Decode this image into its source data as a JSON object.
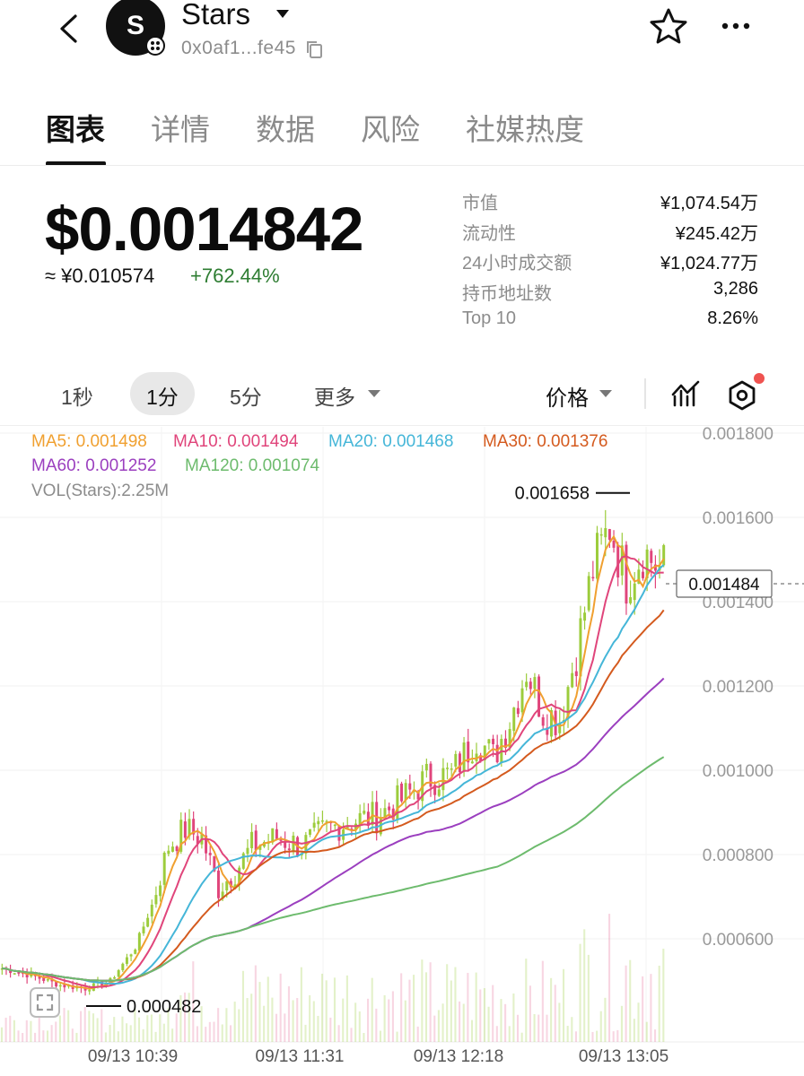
{
  "header": {
    "avatar_letter": "S",
    "token_name": "Stars",
    "address": "0x0af1...fe45",
    "icons": {
      "back": "chevron-left-icon",
      "copy": "copy-icon",
      "star": "star-outline-icon",
      "more": "more-horizontal-icon"
    }
  },
  "tabs": [
    {
      "label": "图表",
      "active": true
    },
    {
      "label": "详情",
      "active": false
    },
    {
      "label": "数据",
      "active": false
    },
    {
      "label": "风险",
      "active": false
    },
    {
      "label": "社媒热度",
      "active": false
    }
  ],
  "price": {
    "usd": "$0.0014842",
    "cny": "≈ ¥0.010574",
    "change": "+762.44%",
    "change_color": "#2e7d32"
  },
  "stats": [
    {
      "label": "市值",
      "value": "¥1,074.54万"
    },
    {
      "label": "流动性",
      "value": "¥245.42万"
    },
    {
      "label": "24小时成交额",
      "value": "¥1,024.77万"
    },
    {
      "label": "持币地址数",
      "value": "3,286"
    },
    {
      "label": "Top 10",
      "value": "8.26%"
    }
  ],
  "intervals": [
    {
      "label": "1秒",
      "active": false
    },
    {
      "label": "1分",
      "active": true
    },
    {
      "label": "5分",
      "active": false
    },
    {
      "label": "更多",
      "active": false
    }
  ],
  "price_select_label": "价格",
  "chart_data": {
    "type": "candlestick",
    "ma": [
      {
        "label": "MA5: 0.001498",
        "color": "#f0a030"
      },
      {
        "label": "MA10: 0.001494",
        "color": "#e0457b"
      },
      {
        "label": "MA20: 0.001468",
        "color": "#45b6d8"
      },
      {
        "label": "MA30: 0.001376",
        "color": "#d45a1e"
      },
      {
        "label": "MA60: 0.001252",
        "color": "#9b3fbf"
      },
      {
        "label": "MA120: 0.001074",
        "color": "#6dbb6d"
      }
    ],
    "volume_label": "VOL(Stars):2.25M",
    "y_ticks": [
      "0.001800",
      "0.001600",
      "0.001400",
      "0.001200",
      "0.001000",
      "0.000800",
      "0.000600"
    ],
    "y_tick_values": [
      0.0018,
      0.0016,
      0.0014,
      0.0012,
      0.001,
      0.0008,
      0.0006
    ],
    "x_ticks": [
      "09/13 10:39",
      "09/13 11:31",
      "09/13 12:18",
      "09/13 13:05"
    ],
    "high_marker": "0.001658",
    "low_marker": "0.000482",
    "current_price": "0.001484",
    "up_color": "#9ccc3c",
    "down_color": "#e0457b",
    "anchors_time_price": [
      [
        0,
        0.00053
      ],
      [
        8,
        0.00051
      ],
      [
        14,
        0.00049
      ],
      [
        20,
        0.000482
      ],
      [
        26,
        0.0005
      ],
      [
        32,
        0.00058
      ],
      [
        36,
        0.00068
      ],
      [
        40,
        0.00082
      ],
      [
        44,
        0.00086
      ],
      [
        48,
        0.00084
      ],
      [
        52,
        0.00072
      ],
      [
        56,
        0.00076
      ],
      [
        60,
        0.00082
      ],
      [
        66,
        0.00084
      ],
      [
        72,
        0.00082
      ],
      [
        78,
        0.00086
      ],
      [
        84,
        0.00088
      ],
      [
        90,
        0.00089
      ],
      [
        96,
        0.00093
      ],
      [
        102,
        0.00098
      ],
      [
        108,
        0.00099
      ],
      [
        114,
        0.00108
      ],
      [
        118,
        0.00103
      ],
      [
        122,
        0.00112
      ],
      [
        126,
        0.00124
      ],
      [
        130,
        0.00114
      ],
      [
        134,
        0.00112
      ],
      [
        138,
        0.00128
      ],
      [
        142,
        0.00148
      ],
      [
        146,
        0.00158
      ],
      [
        150,
        0.00145
      ],
      [
        154,
        0.00152
      ],
      [
        158,
        0.00148
      ]
    ]
  }
}
